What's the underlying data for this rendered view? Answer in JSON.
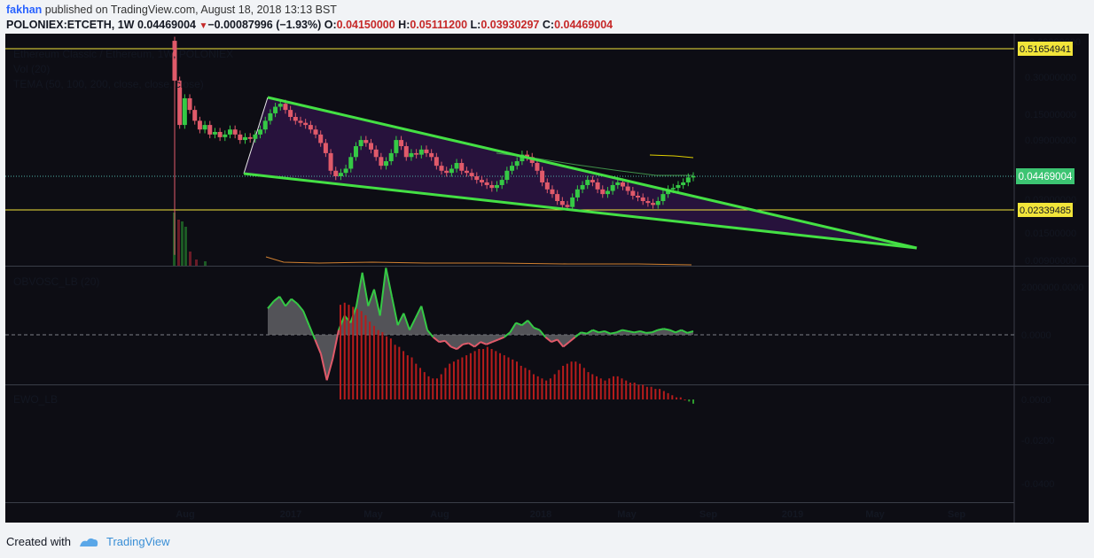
{
  "header": {
    "author": "fakhan",
    "published": "published on TradingView.com, August 18, 2018 13:13 BST",
    "symbol": "POLONIEX:ETCETH, 1W",
    "last": "0.04469004",
    "change_arrow": "▼",
    "change": "−0.00087996 (−1.93%)",
    "o_label": "O:",
    "o": "0.04150000",
    "h_label": "H:",
    "h": "0.05111200",
    "l_label": "L:",
    "l": "0.03930297",
    "c_label": "C:",
    "c": "0.04469004"
  },
  "legend": {
    "title": "Ethereum Classic / Ethereum, 1W, POLONIEX",
    "vol": "Vol (20)",
    "tema": "TEMA (50, 100, 200, close, close, close)",
    "obv": "OBVOSC_LB (20)",
    "ewo": "EWO_LB"
  },
  "footer": {
    "created": "Created with",
    "brand": "TradingView"
  },
  "colors": {
    "background": "#131722",
    "pane_bg": "#0d0d14",
    "up": "#35c945",
    "down": "#e05a6a",
    "trendline": "#44e044",
    "wedge_fill": "#2a1340",
    "hline": "#f2e53a",
    "ewo_neg": "#b71c1c",
    "ewo_pos": "#2e9e2e",
    "tema": "#e0d000",
    "price_label": "#3cc472"
  },
  "chart_data": [
    {
      "type": "candlestick",
      "pane": "price",
      "scale": "log",
      "y_ticks": [
        "0.30000000",
        "0.15000000",
        "0.09000000",
        "0.03000000",
        "0.01500000",
        "0.00900000"
      ],
      "x_ticks": [
        "Aug",
        "2017",
        "May",
        "Aug",
        "2018",
        "May",
        "Sep",
        "2019",
        "May",
        "Sep"
      ],
      "horizontal_levels": [
        "0.51654941",
        "0.02339485"
      ],
      "last_price": "0.04469004",
      "last_price_value": 0.04469004,
      "hidden_axis_label": "0.60000000",
      "close_series": [
        0.28,
        0.12,
        0.2,
        0.16,
        0.13,
        0.11,
        0.12,
        0.1,
        0.105,
        0.095,
        0.1,
        0.11,
        0.1,
        0.09,
        0.095,
        0.092,
        0.1,
        0.11,
        0.13,
        0.15,
        0.17,
        0.18,
        0.16,
        0.14,
        0.13,
        0.125,
        0.12,
        0.11,
        0.1,
        0.085,
        0.07,
        0.05,
        0.045,
        0.048,
        0.052,
        0.065,
        0.08,
        0.09,
        0.085,
        0.075,
        0.065,
        0.055,
        0.06,
        0.07,
        0.09,
        0.08,
        0.065,
        0.07,
        0.068,
        0.075,
        0.07,
        0.065,
        0.055,
        0.05,
        0.048,
        0.052,
        0.058,
        0.05,
        0.048,
        0.045,
        0.042,
        0.04,
        0.038,
        0.036,
        0.038,
        0.042,
        0.05,
        0.055,
        0.06,
        0.068,
        0.065,
        0.058,
        0.05,
        0.04,
        0.035,
        0.032,
        0.028,
        0.026,
        0.025,
        0.03,
        0.035,
        0.038,
        0.042,
        0.04,
        0.035,
        0.032,
        0.034,
        0.038,
        0.04,
        0.037,
        0.034,
        0.031,
        0.03,
        0.028,
        0.027,
        0.026,
        0.028,
        0.032,
        0.035,
        0.036,
        0.038,
        0.04,
        0.044,
        0.045
      ]
    },
    {
      "type": "area",
      "pane": "OBVOSC_LB (20)",
      "y_ticks": [
        "2000000.0000",
        "0.0000"
      ],
      "values": [
        1100000,
        1400000,
        1600000,
        1200000,
        1500000,
        1300000,
        1000000,
        400000,
        -200000,
        -800000,
        -1900000,
        -1000000,
        200000,
        800000,
        500000,
        1200000,
        2600000,
        1200000,
        1900000,
        800000,
        2800000,
        1600000,
        400000,
        900000,
        200000,
        700000,
        1200000,
        200000,
        -100000,
        -300000,
        -250000,
        -500000,
        -600000,
        -400000,
        -350000,
        -500000,
        -300000,
        -400000,
        -300000,
        -200000,
        -100000,
        100000,
        500000,
        400000,
        600000,
        300000,
        200000,
        -100000,
        -300000,
        -200000,
        -500000,
        -300000,
        -100000,
        100000,
        50000,
        200000,
        100000,
        150000,
        50000,
        100000,
        200000,
        150000,
        100000,
        150000,
        80000,
        100000,
        200000,
        250000,
        200000,
        100000,
        200000,
        80000,
        150000
      ]
    },
    {
      "type": "bar",
      "pane": "EWO_LB",
      "y_ticks": [
        "0.0000",
        "-0.0200",
        "-0.0400"
      ],
      "values": [
        -0.045,
        -0.046,
        -0.045,
        -0.044,
        -0.043,
        -0.042,
        -0.04,
        -0.037,
        -0.035,
        -0.033,
        -0.032,
        -0.03,
        -0.029,
        -0.026,
        -0.025,
        -0.023,
        -0.021,
        -0.02,
        -0.017,
        -0.015,
        -0.013,
        -0.011,
        -0.01,
        -0.01,
        -0.012,
        -0.015,
        -0.017,
        -0.018,
        -0.019,
        -0.02,
        -0.021,
        -0.022,
        -0.023,
        -0.024,
        -0.024,
        -0.025,
        -0.024,
        -0.023,
        -0.022,
        -0.021,
        -0.02,
        -0.019,
        -0.018,
        -0.016,
        -0.015,
        -0.014,
        -0.012,
        -0.011,
        -0.01,
        -0.009,
        -0.01,
        -0.012,
        -0.014,
        -0.016,
        -0.017,
        -0.018,
        -0.018,
        -0.017,
        -0.015,
        -0.013,
        -0.012,
        -0.011,
        -0.01,
        -0.009,
        -0.01,
        -0.011,
        -0.011,
        -0.01,
        -0.009,
        -0.008,
        -0.008,
        -0.007,
        -0.007,
        -0.006,
        -0.006,
        -0.005,
        -0.005,
        -0.004,
        -0.003,
        -0.002,
        -0.001,
        -0.001,
        0.0,
        0.001,
        0.002
      ]
    }
  ]
}
